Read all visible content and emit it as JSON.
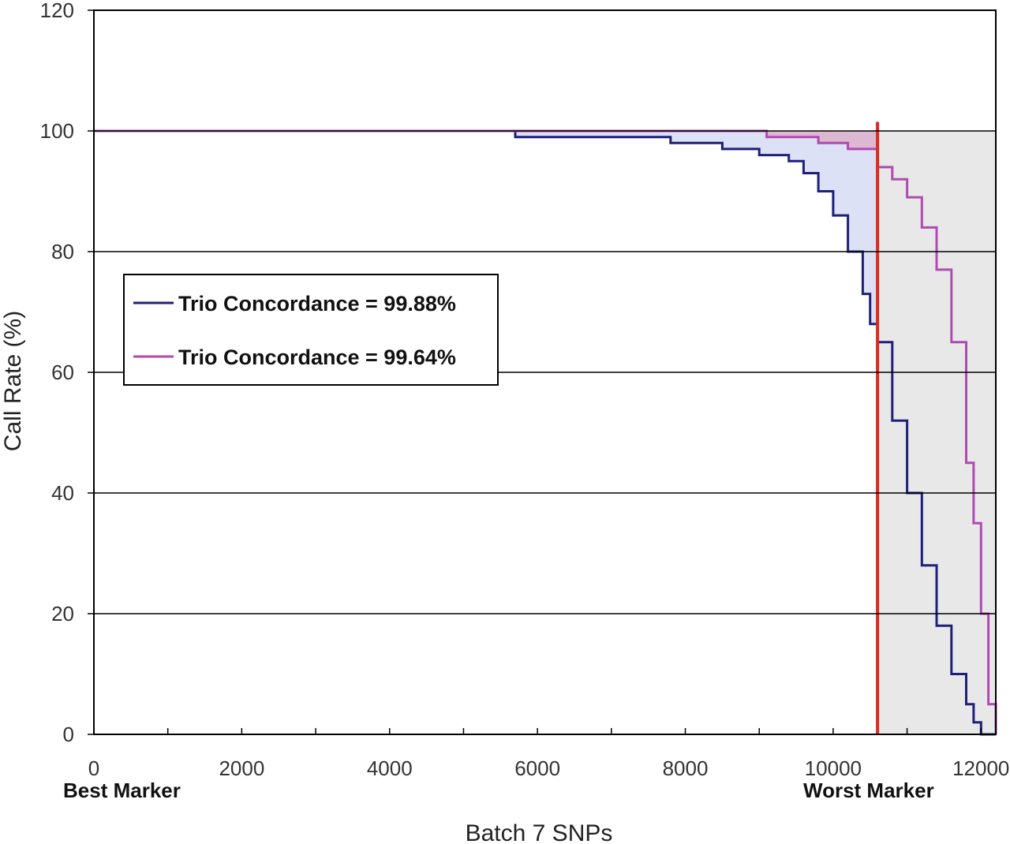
{
  "chart_data": {
    "type": "line",
    "xlabel": "Batch 7 SNPs",
    "ylabel": "Call Rate (%)",
    "xlim": [
      0,
      12200
    ],
    "ylim": [
      0,
      120
    ],
    "x_ticks": [
      0,
      2000,
      4000,
      6000,
      8000,
      10000,
      12000
    ],
    "x_tick_labels": [
      "0",
      "2000",
      "4000",
      "6000",
      "8000",
      "10000",
      "12000"
    ],
    "y_ticks": [
      0,
      20,
      40,
      60,
      80,
      100,
      120
    ],
    "y_tick_labels": [
      "0",
      "20",
      "40",
      "60",
      "80",
      "100",
      "120"
    ],
    "x_minor_step": 1000,
    "grid": true,
    "legend_position": "left",
    "x_marker_labels": [
      {
        "x": 0,
        "label": "Best Marker"
      },
      {
        "x": 10600,
        "label": "Worst Marker"
      }
    ],
    "threshold": {
      "x": 10600,
      "color": "#e0281e"
    },
    "shaded_region": {
      "x_start": 10600,
      "x_end": 12200,
      "y_top": 100,
      "color": "#e8e8e8"
    },
    "between_fills": [
      {
        "upper": "Trio Concordance = 99.64%",
        "lower": "Trio Concordance = 99.88%",
        "x_end": 10600,
        "color": "#dde1f5"
      },
      {
        "upper": 100,
        "lower": "Trio Concordance = 99.64%",
        "x_start": 9100,
        "x_end": 10600,
        "color": "#dcb8d2"
      }
    ],
    "series": [
      {
        "name": "Trio Concordance = 99.88%",
        "color": "#1f1f7a",
        "step": true,
        "x": [
          0,
          5700,
          7800,
          8500,
          9000,
          9400,
          9600,
          9800,
          10000,
          10200,
          10400,
          10500,
          10600,
          10800,
          11000,
          11200,
          11400,
          11600,
          11800,
          11900,
          12000,
          12200
        ],
        "y": [
          100,
          99,
          98,
          97,
          96,
          95,
          93,
          90,
          86,
          80,
          73,
          68,
          65,
          52,
          40,
          28,
          18,
          10,
          5,
          2,
          0,
          0
        ]
      },
      {
        "name": "Trio Concordance = 99.64%",
        "color": "#b04ab0",
        "step": true,
        "x": [
          0,
          9100,
          9800,
          10200,
          10600,
          10800,
          11000,
          11200,
          11400,
          11600,
          11800,
          11900,
          12000,
          12100,
          12200
        ],
        "y": [
          100,
          99,
          98,
          97,
          94,
          92,
          89,
          84,
          77,
          65,
          45,
          35,
          20,
          5,
          0
        ]
      }
    ]
  }
}
